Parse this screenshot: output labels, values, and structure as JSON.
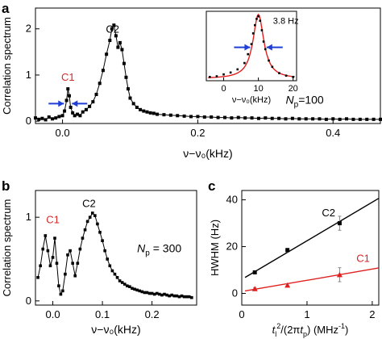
{
  "chart_data": [
    {
      "panel": "a",
      "type": "line",
      "ylabel": "Correlation spectrum",
      "xlabel": "ν−ν₀(kHz)",
      "xlim": [
        -0.04,
        0.47
      ],
      "ylim": [
        -0.05,
        2.45
      ],
      "xticks": [
        0.0,
        0.2,
        0.4
      ],
      "xtick_labels": [
        "0.0",
        "0.2",
        "0.4"
      ],
      "yticks": [
        0,
        1,
        2
      ],
      "ytick_labels": [
        "0",
        "1",
        "2"
      ],
      "annotations": [
        {
          "text": "C1",
          "x": 0.008,
          "y": 0.88,
          "color": "#d62728"
        },
        {
          "text": "C2",
          "x": 0.074,
          "y": 1.92,
          "color": "#000000"
        },
        {
          "text": "N",
          "sub": "p",
          "value": "=100",
          "x": 0.33,
          "y": 0.38
        }
      ],
      "linewidth_marker": {
        "x": 0.008,
        "y": 0.38
      },
      "series": [
        {
          "x": [
            -0.04,
            -0.035,
            -0.03,
            -0.025,
            -0.02,
            -0.015,
            -0.01,
            -0.005,
            0.0,
            0.003,
            0.006,
            0.008,
            0.01,
            0.012,
            0.015,
            0.018,
            0.022,
            0.026,
            0.03,
            0.035,
            0.04,
            0.045,
            0.05,
            0.055,
            0.06,
            0.065,
            0.07,
            0.073,
            0.076,
            0.079,
            0.082,
            0.085,
            0.088,
            0.091,
            0.094,
            0.097,
            0.1,
            0.105,
            0.11,
            0.115,
            0.12,
            0.125,
            0.13,
            0.135,
            0.14,
            0.15,
            0.16,
            0.17,
            0.18,
            0.19,
            0.2,
            0.21,
            0.22,
            0.23,
            0.24,
            0.25,
            0.26,
            0.27,
            0.28,
            0.29,
            0.3,
            0.31,
            0.32,
            0.33,
            0.34,
            0.35,
            0.36,
            0.37,
            0.38,
            0.39,
            0.4,
            0.41,
            0.42,
            0.43,
            0.44,
            0.45,
            0.46,
            0.47
          ],
          "y": [
            0.07,
            0.04,
            0.06,
            0.03,
            0.09,
            0.05,
            0.07,
            0.1,
            0.12,
            0.22,
            0.45,
            0.7,
            0.55,
            0.3,
            0.18,
            0.12,
            0.15,
            0.12,
            0.2,
            0.25,
            0.32,
            0.42,
            0.58,
            0.82,
            1.1,
            1.45,
            1.75,
            2.0,
            2.08,
            1.85,
            1.6,
            1.7,
            1.55,
            1.25,
            0.95,
            0.7,
            0.5,
            0.38,
            0.3,
            0.25,
            0.22,
            0.2,
            0.18,
            0.17,
            0.15,
            0.14,
            0.13,
            0.12,
            0.11,
            0.1,
            0.1,
            0.09,
            0.09,
            0.08,
            0.08,
            0.07,
            0.08,
            0.07,
            0.07,
            0.06,
            0.07,
            0.06,
            0.06,
            0.05,
            0.06,
            0.05,
            0.05,
            0.05,
            0.05,
            0.04,
            0.05,
            0.04,
            0.05,
            0.04,
            0.04,
            0.04,
            0.04,
            0.04
          ]
        }
      ]
    },
    {
      "panel": "a-inset",
      "type": "scatter",
      "xlabel": "ν−ν₀(kHz)",
      "xlim": [
        -5,
        21
      ],
      "ylim": [
        0,
        1.1
      ],
      "xticks": [
        0,
        10,
        20
      ],
      "xtick_labels": [
        "0",
        "10",
        "20"
      ],
      "annotations": [
        {
          "text": "3.8 Hz"
        }
      ],
      "fit": {
        "center": 10,
        "hwhm": 1.9,
        "color": "#e02020"
      },
      "series": [
        {
          "x": [
            -4,
            -2,
            0,
            2,
            4,
            6,
            7,
            8,
            8.5,
            9,
            9.5,
            10,
            10.5,
            11,
            11.5,
            12,
            13,
            14,
            16,
            18,
            20
          ],
          "y": [
            0.06,
            0.07,
            0.1,
            0.13,
            0.18,
            0.28,
            0.42,
            0.58,
            0.75,
            0.88,
            0.98,
            1.02,
            0.95,
            0.8,
            0.62,
            0.5,
            0.32,
            0.22,
            0.12,
            0.08,
            0.06
          ]
        }
      ]
    },
    {
      "panel": "b",
      "type": "line",
      "ylabel": "Correlation spectrum",
      "xlabel": "ν−ν₀(kHz)",
      "xlim": [
        -0.035,
        0.29
      ],
      "ylim": [
        -0.05,
        1.32
      ],
      "xticks": [
        0.0,
        0.1,
        0.2
      ],
      "xtick_labels": [
        "0.0",
        "0.1",
        "0.2"
      ],
      "yticks": [
        0,
        1
      ],
      "ytick_labels": [
        "0",
        "1"
      ],
      "annotations": [
        {
          "text": "C1",
          "x": 0.0,
          "y": 0.93,
          "color": "#d62728"
        },
        {
          "text": "C2",
          "x": 0.073,
          "y": 1.12,
          "color": "#000000"
        },
        {
          "text": "N",
          "sub": "p",
          "value": " = 300",
          "x": 0.17,
          "y": 0.58
        }
      ],
      "series": [
        {
          "x": [
            -0.03,
            -0.025,
            -0.02,
            -0.015,
            -0.01,
            -0.005,
            0.0,
            0.004,
            0.008,
            0.012,
            0.016,
            0.02,
            0.025,
            0.03,
            0.035,
            0.04,
            0.045,
            0.05,
            0.055,
            0.06,
            0.065,
            0.07,
            0.075,
            0.08,
            0.085,
            0.09,
            0.095,
            0.1,
            0.105,
            0.11,
            0.115,
            0.12,
            0.125,
            0.13,
            0.135,
            0.14,
            0.145,
            0.15,
            0.155,
            0.16,
            0.165,
            0.17,
            0.175,
            0.18,
            0.185,
            0.19,
            0.195,
            0.2,
            0.205,
            0.21,
            0.215,
            0.22,
            0.225,
            0.23,
            0.235,
            0.24,
            0.245,
            0.25,
            0.255,
            0.26,
            0.265,
            0.27,
            0.275,
            0.28
          ],
          "y": [
            0.28,
            0.42,
            0.62,
            0.78,
            0.6,
            0.42,
            0.52,
            0.75,
            0.45,
            0.18,
            0.08,
            0.12,
            0.32,
            0.55,
            0.6,
            0.45,
            0.3,
            0.45,
            0.62,
            0.75,
            0.85,
            0.95,
            1.0,
            1.05,
            1.02,
            0.92,
            0.82,
            0.72,
            0.6,
            0.5,
            0.42,
            0.36,
            0.32,
            0.28,
            0.24,
            0.22,
            0.2,
            0.18,
            0.17,
            0.15,
            0.14,
            0.13,
            0.12,
            0.11,
            0.1,
            0.1,
            0.09,
            0.09,
            0.08,
            0.09,
            0.08,
            0.07,
            0.08,
            0.07,
            0.06,
            0.07,
            0.06,
            0.06,
            0.05,
            0.06,
            0.05,
            0.05,
            0.05,
            0.04
          ]
        }
      ]
    },
    {
      "panel": "c",
      "type": "scatter",
      "ylabel": "HWHM (Hz)",
      "xlabel_parts": {
        "t": "t",
        "sub_i": "l",
        "sup_2": "2",
        "mid": "/(2π",
        "t2": "t",
        "sub_p": "p",
        "tail": ") (MHz",
        "sup_unit": "-1",
        "end": ")"
      },
      "xlim": [
        0,
        2.1
      ],
      "ylim": [
        -5,
        44
      ],
      "xticks": [
        0,
        1,
        2
      ],
      "xtick_labels": [
        "0",
        "1",
        "2"
      ],
      "yticks": [
        0,
        20,
        40
      ],
      "ytick_labels": [
        "0",
        "20",
        "40"
      ],
      "series": [
        {
          "name": "C2",
          "color": "#000000",
          "marker": "square",
          "x": [
            0.2,
            0.7,
            1.5
          ],
          "y": [
            9,
            18.5,
            30
          ],
          "err": [
            0.6,
            0.8,
            3.0
          ],
          "fit": {
            "slope": 16.5,
            "intercept": 6
          }
        },
        {
          "name": "C1",
          "color": "#e02020",
          "marker": "triangle",
          "x": [
            0.2,
            0.7,
            1.5
          ],
          "y": [
            2,
            3.5,
            8
          ],
          "err": [
            0.5,
            0.5,
            3.0
          ],
          "fit": {
            "slope": 4.8,
            "intercept": 0.8
          }
        }
      ]
    }
  ],
  "panel_labels": {
    "a": "a",
    "b": "b",
    "c": "c"
  }
}
